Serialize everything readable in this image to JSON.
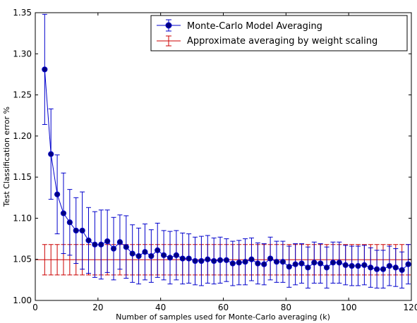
{
  "chart_data": {
    "type": "scatter",
    "title": "",
    "xlabel": "Number of samples used for Monte-Carlo averaging (k)",
    "ylabel": "Test Classification error %",
    "xlim": [
      0,
      120
    ],
    "ylim": [
      1.0,
      1.35
    ],
    "x_ticks": [
      "0",
      "20",
      "40",
      "60",
      "80",
      "100",
      "120"
    ],
    "y_ticks": [
      "1.00",
      "1.05",
      "1.10",
      "1.15",
      "1.20",
      "1.25",
      "1.30",
      "1.35"
    ],
    "grid": false,
    "legend_position": "top-right",
    "series": [
      {
        "name": "Monte-Carlo Model Averaging",
        "color": "#0000cc",
        "marker_fill": "#000080",
        "style": "line-with-markers-and-error-bars",
        "x": [
          3,
          5,
          7,
          9,
          11,
          13,
          15,
          17,
          19,
          21,
          23,
          25,
          27,
          29,
          31,
          33,
          35,
          37,
          39,
          41,
          43,
          45,
          47,
          49,
          51,
          53,
          55,
          57,
          59,
          61,
          63,
          65,
          67,
          69,
          71,
          73,
          75,
          77,
          79,
          81,
          83,
          85,
          87,
          89,
          91,
          93,
          95,
          97,
          99,
          101,
          103,
          105,
          107,
          109,
          111,
          113,
          115,
          117,
          119
        ],
        "y": [
          1.281,
          1.178,
          1.129,
          1.106,
          1.095,
          1.085,
          1.085,
          1.073,
          1.068,
          1.068,
          1.072,
          1.063,
          1.071,
          1.065,
          1.057,
          1.054,
          1.059,
          1.054,
          1.061,
          1.055,
          1.052,
          1.055,
          1.051,
          1.051,
          1.048,
          1.048,
          1.05,
          1.048,
          1.049,
          1.049,
          1.045,
          1.046,
          1.047,
          1.05,
          1.045,
          1.044,
          1.051,
          1.047,
          1.047,
          1.041,
          1.044,
          1.045,
          1.04,
          1.046,
          1.045,
          1.04,
          1.046,
          1.046,
          1.043,
          1.042,
          1.042,
          1.043,
          1.04,
          1.038,
          1.038,
          1.042,
          1.04,
          1.037,
          1.044
        ],
        "err": [
          0.067,
          0.055,
          0.048,
          0.049,
          0.04,
          0.04,
          0.047,
          0.04,
          0.04,
          0.042,
          0.038,
          0.038,
          0.033,
          0.038,
          0.035,
          0.034,
          0.034,
          0.032,
          0.033,
          0.03,
          0.032,
          0.03,
          0.031,
          0.03,
          0.029,
          0.03,
          0.029,
          0.028,
          0.028,
          0.026,
          0.027,
          0.027,
          0.028,
          0.026,
          0.025,
          0.025,
          0.026,
          0.025,
          0.025,
          0.025,
          0.025,
          0.024,
          0.025,
          0.025,
          0.024,
          0.025,
          0.025,
          0.025,
          0.024,
          0.024,
          0.024,
          0.024,
          0.024,
          0.023,
          0.023,
          0.024,
          0.023,
          0.022,
          0.024
        ]
      },
      {
        "name": "Approximate averaging by weight scaling",
        "color": "#cc0000",
        "style": "constant-with-error-bars",
        "y": 1.0495,
        "err": 0.0185,
        "x": [
          3,
          5,
          7,
          9,
          11,
          13,
          15,
          17,
          19,
          21,
          23,
          25,
          27,
          29,
          31,
          33,
          35,
          37,
          39,
          41,
          43,
          45,
          47,
          49,
          51,
          53,
          55,
          57,
          59,
          61,
          63,
          65,
          67,
          69,
          71,
          73,
          75,
          77,
          79,
          81,
          83,
          85,
          87,
          89,
          91,
          93,
          95,
          97,
          99,
          101,
          103,
          105,
          107,
          109,
          111,
          113,
          115,
          117,
          119
        ]
      }
    ]
  }
}
